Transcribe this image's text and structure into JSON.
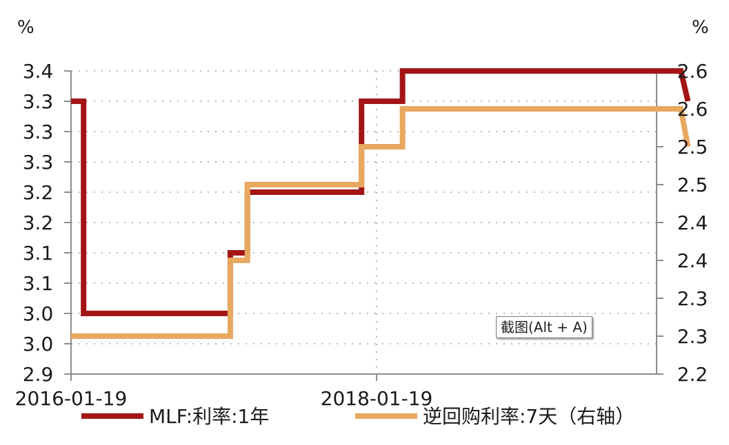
{
  "chart_data": {
    "type": "line",
    "left_unit": "%",
    "right_unit": "%",
    "left_axis": {
      "ylim": [
        2.9,
        3.4
      ],
      "tick_values": [
        2.9,
        2.95,
        3.0,
        3.05,
        3.1,
        3.15,
        3.2,
        3.25,
        3.3,
        3.35,
        3.4
      ],
      "tick_labels": [
        "2.9",
        "3.0",
        "3.0",
        "3.1",
        "3.1",
        "3.2",
        "3.2",
        "3.3",
        "3.3",
        "3.3",
        "3.4"
      ]
    },
    "right_axis": {
      "ylim": [
        2.2,
        2.6
      ],
      "tick_values": [
        2.2,
        2.25,
        2.3,
        2.35,
        2.4,
        2.45,
        2.5,
        2.55,
        2.6
      ],
      "tick_labels": [
        "2.2",
        "2.3",
        "2.3",
        "2.4",
        "2.4",
        "2.5",
        "2.5",
        "2.6",
        "2.6"
      ]
    },
    "x_axis": {
      "type": "date",
      "range": [
        "2016-01-19",
        "2020-02-03"
      ],
      "tick_labels": [
        "2016-01-19",
        "2018-01-19"
      ]
    },
    "grid": true,
    "legend_position": "bottom",
    "series": [
      {
        "name": "MLF:利率:1年",
        "axis": "left",
        "color": "#A31515",
        "step": true,
        "points": [
          [
            "2016-01-19",
            3.35
          ],
          [
            "2016-02-18",
            3.0
          ],
          [
            "2017-02-03",
            3.1
          ],
          [
            "2017-03-16",
            3.2
          ],
          [
            "2017-12-14",
            3.35
          ],
          [
            "2018-03-22",
            3.4
          ],
          [
            "2020-01-17",
            3.4
          ],
          [
            "2020-02-03",
            3.35
          ]
        ]
      },
      {
        "name": "逆回购利率:7天（右轴）",
        "axis": "right",
        "color": "#E8A860",
        "step": true,
        "points": [
          [
            "2016-01-19",
            2.25
          ],
          [
            "2017-02-03",
            2.35
          ],
          [
            "2017-03-16",
            2.45
          ],
          [
            "2017-12-14",
            2.5
          ],
          [
            "2018-03-22",
            2.55
          ],
          [
            "2020-01-17",
            2.55
          ],
          [
            "2020-02-03",
            2.5
          ]
        ]
      }
    ]
  },
  "tooltip": "截图(Alt + A)"
}
